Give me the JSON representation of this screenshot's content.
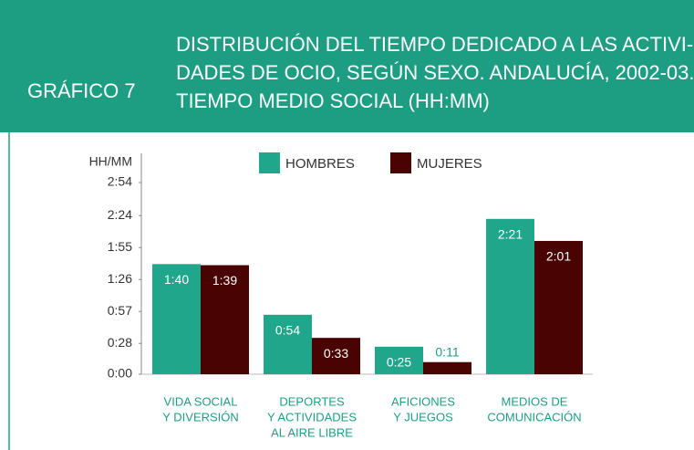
{
  "chart_data": {
    "type": "bar",
    "label": "GRÁFICO 7",
    "title": [
      "DISTRIBUCIÓN DEL TIEMPO DEDICADO A LAS ACTIVI-",
      "DADES DE OCIO, SEGÚN SEXO. ANDALUCÍA, 2002-03.",
      "TIEMPO MEDIO SOCIAL (HH:MM)"
    ],
    "y_label": "HH/MM",
    "categories": [
      [
        "VIDA SOCIAL",
        "Y DIVERSIÓN"
      ],
      [
        "DEPORTES",
        "Y ACTIVIDADES",
        "AL AIRE LIBRE"
      ],
      [
        "AFICIONES",
        "Y JUEGOS"
      ],
      [
        "MEDIOS DE",
        "COMUNICACIÓN"
      ]
    ],
    "series": [
      {
        "name": "HOMBRES",
        "color": "#1fa68b",
        "values": [
          100,
          54,
          25,
          141
        ],
        "value_labels": [
          "1:40",
          "0:54",
          "0:25",
          "2:21"
        ]
      },
      {
        "name": "MUJERES",
        "color": "#4a0303",
        "values": [
          99,
          33,
          11,
          121
        ],
        "value_labels": [
          "1:39",
          "0:33",
          "0:11",
          "2:01"
        ]
      }
    ],
    "ylim": [
      0,
      174
    ],
    "yticks": [
      {
        "value": 0,
        "label": "0:00"
      },
      {
        "value": 28,
        "label": "0:28"
      },
      {
        "value": 57,
        "label": "0:57"
      },
      {
        "value": 86,
        "label": "1:26"
      },
      {
        "value": 115,
        "label": "1:55"
      },
      {
        "value": 144,
        "label": "2:24"
      },
      {
        "value": 174,
        "label": "2:54"
      }
    ],
    "legend": "top"
  }
}
